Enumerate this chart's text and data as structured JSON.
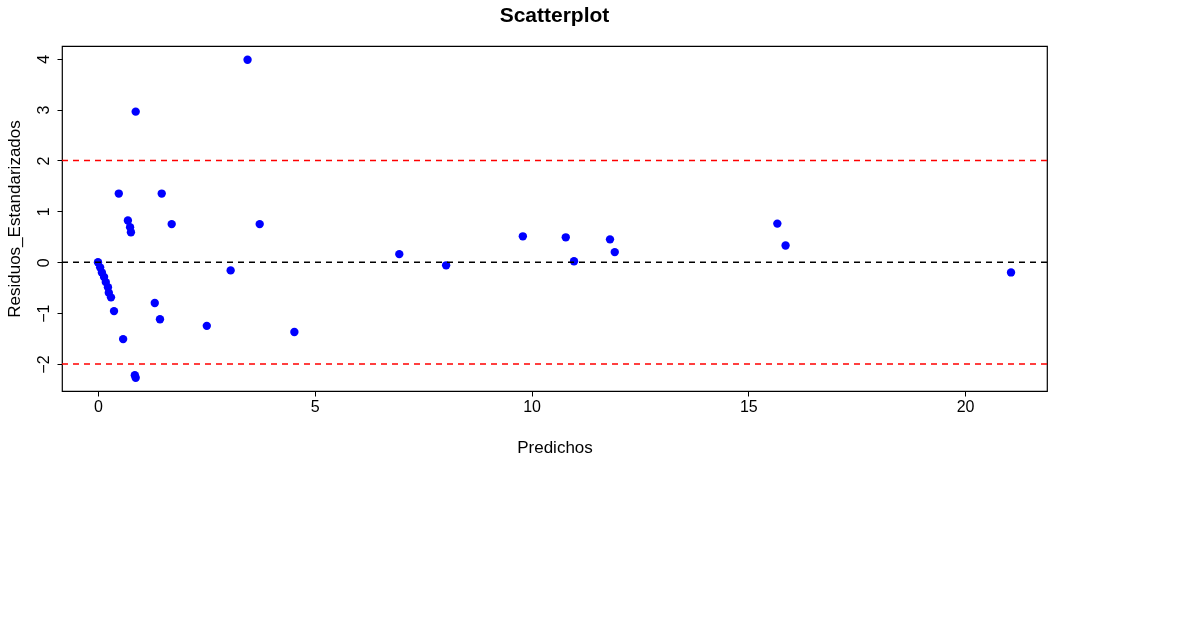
{
  "chart_data": {
    "type": "scatter",
    "title": "Scatterplot",
    "xlabel": "Predichos",
    "ylabel": "Residuos_Estandarizados",
    "x": [
      0,
      0.05,
      0.09,
      0.14,
      0.18,
      0.23,
      0.25,
      0.3,
      0.37,
      0.58,
      0.48,
      0.69,
      0.74,
      0.76,
      0.87,
      0.85,
      0.87,
      1.47,
      1.31,
      1.43,
      1.7,
      2.51,
      3.06,
      3.45,
      3.73,
      4.53,
      6.95,
      8.03,
      9.8,
      10.79,
      10.98,
      11.81,
      11.92,
      15.67,
      15.86,
      21.06
    ],
    "series": [
      {
        "color": "#0000ff",
        "values": [
          0,
          -0.1,
          -0.2,
          -0.29,
          -0.39,
          -0.49,
          -0.6,
          -0.69,
          -0.96,
          -1.51,
          1.35,
          0.82,
          0.69,
          0.59,
          2.96,
          -2.22,
          -2.27,
          1.35,
          -0.8,
          -1.12,
          0.75,
          -1.25,
          -0.16,
          3.98,
          0.75,
          -1.37,
          0.16,
          -0.06,
          0.51,
          0.49,
          0.02,
          0.45,
          0.2,
          0.76,
          0.33,
          -0.2
        ]
      }
    ],
    "xlim": [
      -0.83,
      21.89
    ],
    "ylim": [
      -2.53,
      4.25
    ],
    "xticks": [
      0,
      5,
      10,
      15,
      20
    ],
    "yticks": [
      -2,
      -1,
      0,
      1,
      2,
      3,
      4
    ],
    "ref_lines": [
      {
        "axis": "y",
        "value": 2,
        "color": "#ff0000",
        "line_style": "dashed"
      },
      {
        "axis": "y",
        "value": -2,
        "color": "#ff0000",
        "line_style": "dashed"
      },
      {
        "axis": "y",
        "value": 0,
        "color": "#000000",
        "line_style": "dashed"
      }
    ],
    "grid": false,
    "marker": "circle",
    "legend": false
  }
}
